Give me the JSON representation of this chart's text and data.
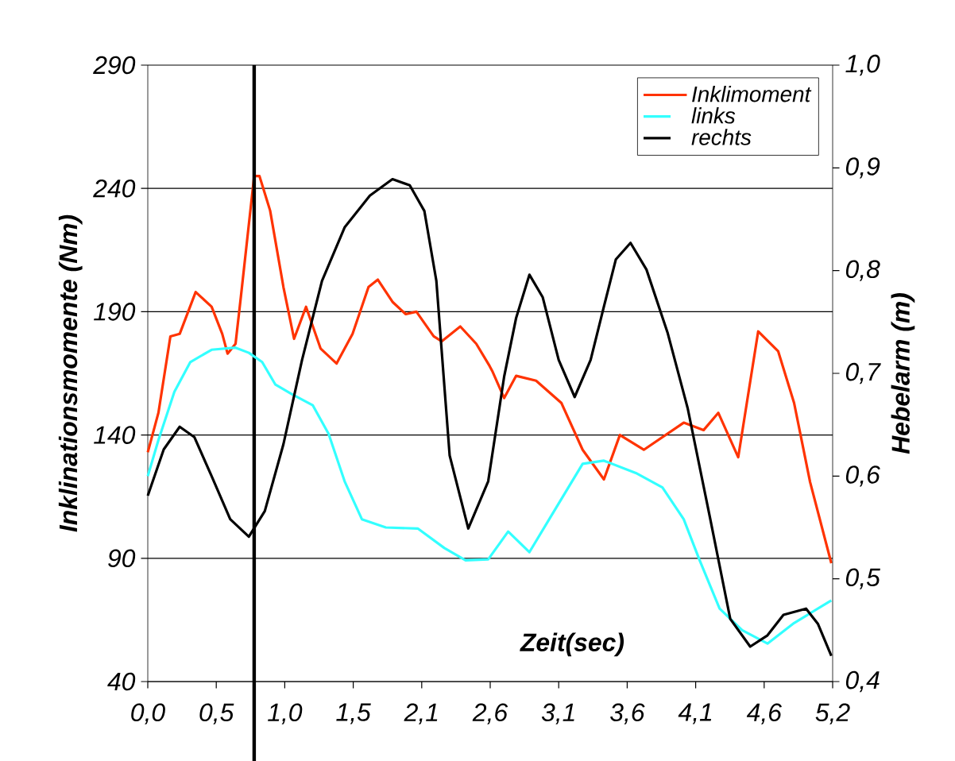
{
  "chart_data": {
    "type": "line",
    "xlabel": "Zeit(sec)",
    "ylabel": "Inklinationsmomente (Nm)",
    "y2label": "Hebelarm (m)",
    "xlim": [
      0,
      5.15
    ],
    "xticks": [
      {
        "value": 0,
        "label": "0,0"
      },
      {
        "value": 0.515,
        "label": "0,5"
      },
      {
        "value": 1.03,
        "label": "1,0"
      },
      {
        "value": 1.545,
        "label": "1,5"
      },
      {
        "value": 2.06,
        "label": "2,1"
      },
      {
        "value": 2.575,
        "label": "2,6"
      },
      {
        "value": 3.09,
        "label": "3,1"
      },
      {
        "value": 3.605,
        "label": "3,6"
      },
      {
        "value": 4.12,
        "label": "4,1"
      },
      {
        "value": 4.635,
        "label": "4,6"
      },
      {
        "value": 5.15,
        "label": "5,2"
      }
    ],
    "ylim": [
      40,
      290
    ],
    "yticks": [
      40,
      90,
      140,
      190,
      240,
      290
    ],
    "y2lim": [
      0.4,
      1.0
    ],
    "y2ticks": [
      {
        "value": 0.4,
        "label": "0,4"
      },
      {
        "value": 0.5,
        "label": "0,5"
      },
      {
        "value": 0.6,
        "label": "0,6"
      },
      {
        "value": 0.7,
        "label": "0,7"
      },
      {
        "value": 0.8,
        "label": "0,8"
      },
      {
        "value": 0.9,
        "label": "0,9"
      },
      {
        "value": 1.0,
        "label": "1,0"
      }
    ],
    "grid": "y",
    "legend": "top right",
    "ref_lines": [
      {
        "axis": "x",
        "value": 0.8,
        "color": "#000000"
      }
    ],
    "series": [
      {
        "name": "Inklimoment",
        "color": "#ff3300",
        "x": [
          0,
          0.08,
          0.17,
          0.24,
          0.36,
          0.48,
          0.56,
          0.6,
          0.66,
          0.7,
          0.8,
          0.84,
          0.92,
          1.02,
          1.1,
          1.19,
          1.3,
          1.42,
          1.54,
          1.66,
          1.73,
          1.84,
          1.94,
          2.02,
          2.15,
          2.21,
          2.35,
          2.47,
          2.57,
          2.59,
          2.68,
          2.77,
          2.92,
          3.11,
          3.27,
          3.43,
          3.55,
          3.73,
          4.03,
          4.18,
          4.29,
          4.44,
          4.59,
          4.74,
          4.86,
          4.98,
          5.14
        ],
        "values": [
          133,
          149,
          180,
          181,
          198,
          192,
          181,
          173,
          177,
          196,
          245,
          245,
          231,
          200,
          179,
          192,
          175,
          169,
          181,
          200,
          203,
          194,
          189,
          190,
          180,
          178,
          184,
          177,
          168,
          166,
          155,
          164,
          162,
          153,
          134,
          122,
          140,
          134,
          145,
          142,
          149,
          131,
          182,
          174,
          153,
          121,
          88
        ]
      },
      {
        "name": "links",
        "color": "#33ffff",
        "axis": "y2",
        "x": [
          0,
          0.08,
          0.2,
          0.32,
          0.48,
          0.66,
          0.76,
          0.86,
          0.96,
          1.08,
          1.24,
          1.36,
          1.48,
          1.61,
          1.79,
          2.03,
          2.23,
          2.39,
          2.56,
          2.71,
          2.87,
          3.07,
          3.27,
          3.43,
          3.67,
          3.87,
          4.03,
          4.15,
          4.3,
          4.47,
          4.66,
          4.86,
          5.14
        ],
        "values": [
          0.6,
          0.635,
          0.682,
          0.711,
          0.723,
          0.725,
          0.72,
          0.711,
          0.689,
          0.68,
          0.669,
          0.641,
          0.595,
          0.558,
          0.55,
          0.549,
          0.53,
          0.518,
          0.519,
          0.546,
          0.526,
          0.569,
          0.612,
          0.615,
          0.603,
          0.589,
          0.558,
          0.518,
          0.471,
          0.45,
          0.437,
          0.457,
          0.479
        ]
      },
      {
        "name": "rechts",
        "color": "#000000",
        "axis": "y2",
        "x": [
          0,
          0.12,
          0.24,
          0.35,
          0.48,
          0.62,
          0.76,
          0.88,
          1.02,
          1.16,
          1.31,
          1.48,
          1.67,
          1.84,
          1.97,
          2.08,
          2.17,
          2.27,
          2.41,
          2.56,
          2.68,
          2.77,
          2.87,
          2.97,
          3.09,
          3.21,
          3.33,
          3.43,
          3.52,
          3.63,
          3.75,
          3.91,
          4.06,
          4.23,
          4.38,
          4.53,
          4.66,
          4.78,
          4.95,
          5.04,
          5.14
        ],
        "values": [
          0.581,
          0.626,
          0.648,
          0.638,
          0.6,
          0.558,
          0.541,
          0.566,
          0.631,
          0.713,
          0.79,
          0.842,
          0.873,
          0.889,
          0.883,
          0.858,
          0.79,
          0.62,
          0.549,
          0.595,
          0.697,
          0.754,
          0.796,
          0.774,
          0.713,
          0.677,
          0.713,
          0.765,
          0.811,
          0.827,
          0.801,
          0.739,
          0.666,
          0.558,
          0.461,
          0.434,
          0.445,
          0.465,
          0.471,
          0.456,
          0.425
        ]
      }
    ]
  }
}
